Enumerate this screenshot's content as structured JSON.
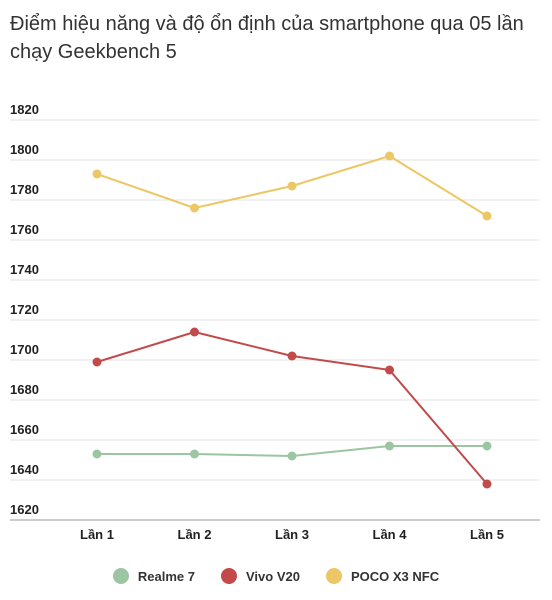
{
  "chart_data": {
    "type": "line",
    "title": "Điểm hiệu năng và độ ổn định của smartphone qua 05 lần chạy Geekbench 5",
    "xlabel": "",
    "ylabel": "",
    "categories": [
      "Lần 1",
      "Lần 2",
      "Lần 3",
      "Lần 4",
      "Lần 5"
    ],
    "ylim": [
      1620,
      1820
    ],
    "yticks": [
      1620,
      1640,
      1660,
      1680,
      1700,
      1720,
      1740,
      1760,
      1780,
      1800,
      1820
    ],
    "grid": true,
    "legend_position": "bottom",
    "series": [
      {
        "name": "Realme 7",
        "color": "#9cc5a1",
        "values": [
          1653,
          1653,
          1652,
          1657,
          1657
        ]
      },
      {
        "name": "Vivo V20",
        "color": "#c24a4a",
        "values": [
          1699,
          1714,
          1702,
          1695,
          1638
        ]
      },
      {
        "name": "POCO X3 NFC",
        "color": "#ecc765",
        "values": [
          1793,
          1776,
          1787,
          1802,
          1772
        ]
      }
    ]
  }
}
